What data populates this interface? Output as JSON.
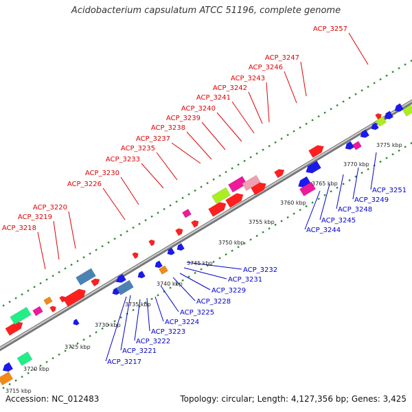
{
  "title": "Acidobacterium capsulatum ATCC 51196, complete genome",
  "footer": {
    "accession": "Accession: NC_012483",
    "topology": "Topology: circular; Length: 4,127,356 bp; Genes: 3,425"
  },
  "colors": {
    "top_strand_label": "#e00000",
    "bottom_strand_label": "#0000cc",
    "backbone": "#8c8c8c",
    "tick": "#2e8b2e",
    "red": "#ff1f1f",
    "blue": "#1a1aee",
    "pink": "#ee1a9a",
    "light_pink": "#f0a0b0",
    "lime": "#aaee22",
    "mint": "#22ee88",
    "steel": "#4a82b4",
    "orange": "#f08a18"
  },
  "scale_ticks": [
    "3715 kbp",
    "3720 kbp",
    "3725 kbp",
    "3730 kbp",
    "3735 kbp",
    "3740 kbp",
    "3745 kbp",
    "3750 kbp",
    "3755 kbp",
    "3760 kbp",
    "3765 kbp",
    "3770 kbp",
    "3775 kbp"
  ],
  "top_labels": [
    "ACP_3218",
    "ACP_3219",
    "ACP_3220",
    "ACP_3226",
    "ACP_3230",
    "ACP_3233",
    "ACP_3235",
    "ACP_3237",
    "ACP_3238",
    "ACP_3239",
    "ACP_3240",
    "ACP_3241",
    "ACP_3242",
    "ACP_3243",
    "ACP_3246",
    "ACP_3247",
    "ACP_3257"
  ],
  "bottom_labels": [
    "ACP_3217",
    "ACP_3221",
    "ACP_3222",
    "ACP_3223",
    "ACP_3224",
    "ACP_3225",
    "ACP_3228",
    "ACP_3229",
    "ACP_3231",
    "ACP_3232",
    "ACP_3244",
    "ACP_3245",
    "ACP_3248",
    "ACP_3249",
    "ACP_3251"
  ]
}
